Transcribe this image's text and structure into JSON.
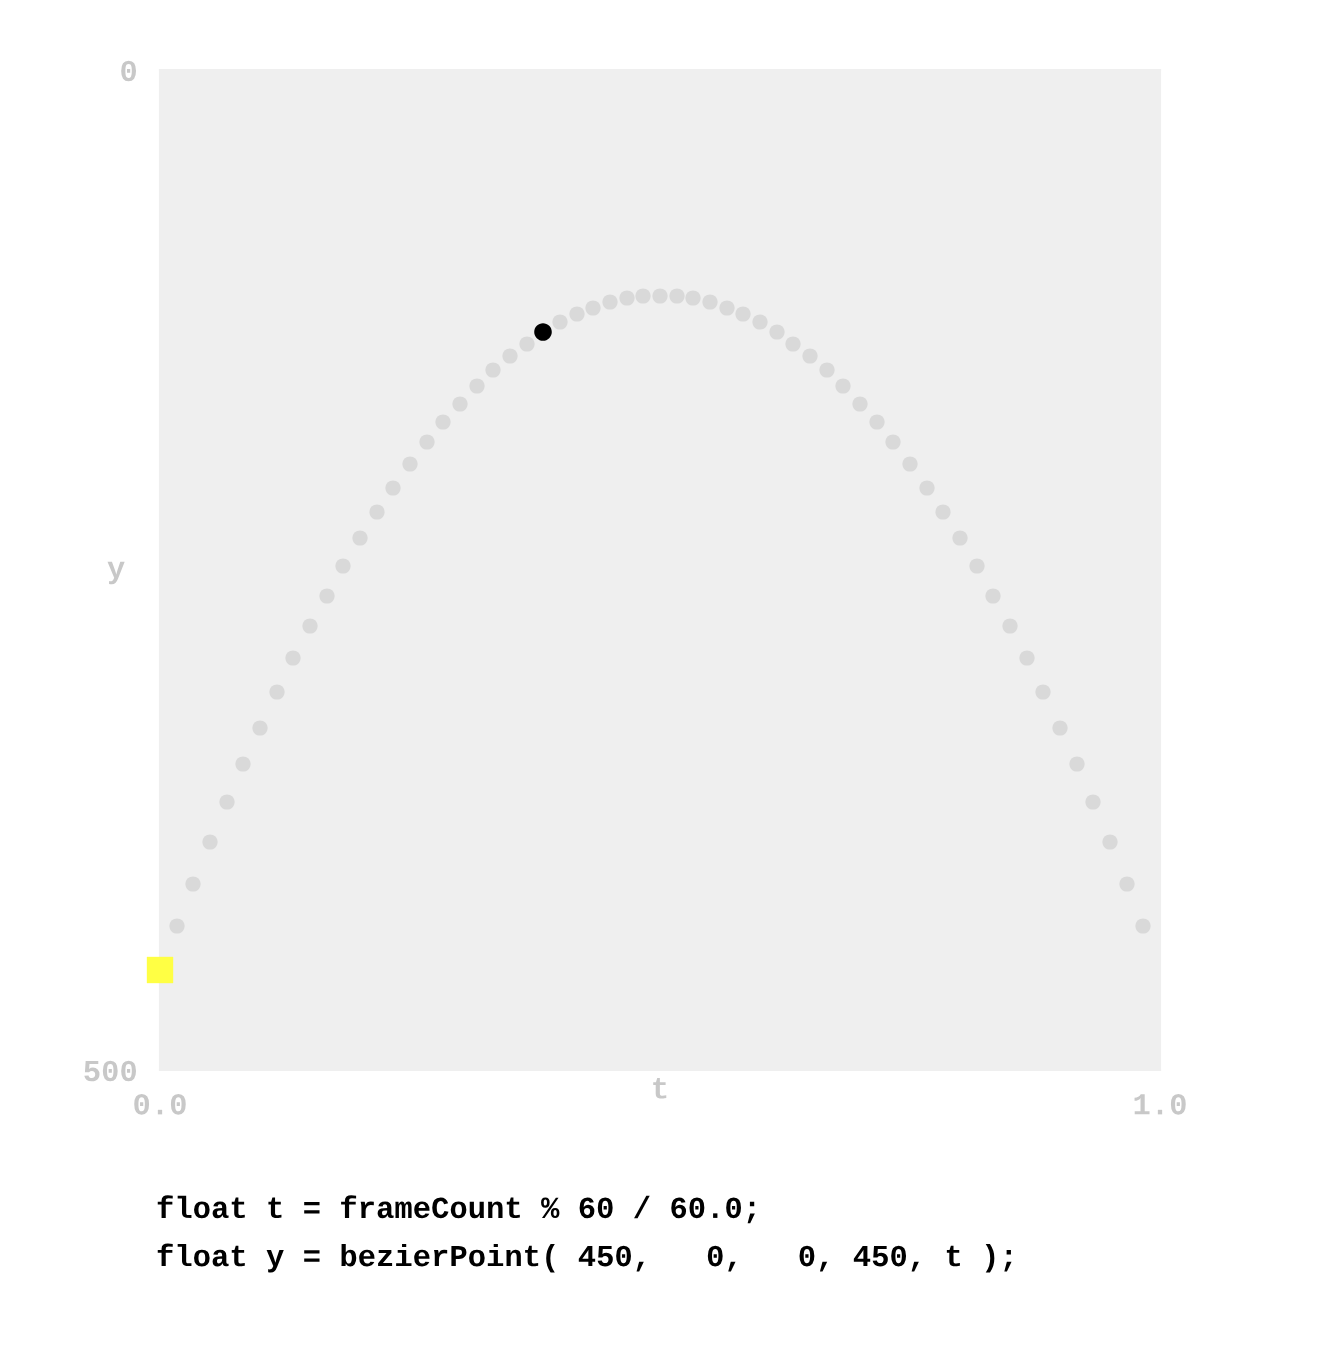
{
  "chart_data": {
    "type": "scatter",
    "xlabel": "t",
    "ylabel": "y",
    "xlim": [
      0,
      1
    ],
    "ylim": [
      500,
      0
    ],
    "xticks": [
      {
        "value": 0,
        "label": "0.0"
      },
      {
        "value": 1,
        "label": "1.0"
      }
    ],
    "yticks": [
      0,
      500
    ],
    "grid": false,
    "marker": "circle",
    "series": [
      {
        "color": "#d9d9d9",
        "x": [
          0.017,
          0.033,
          0.05,
          0.067,
          0.083,
          0.1,
          0.117,
          0.133,
          0.15,
          0.167,
          0.183,
          0.2,
          0.217,
          0.233,
          0.25,
          0.267,
          0.283,
          0.3,
          0.317,
          0.333,
          0.35,
          0.367,
          0.383,
          0.4,
          0.417,
          0.433,
          0.45,
          0.467,
          0.483,
          0.5,
          0.517,
          0.533,
          0.55,
          0.567,
          0.583,
          0.6,
          0.617,
          0.633,
          0.65,
          0.667,
          0.683,
          0.7,
          0.717,
          0.733,
          0.75,
          0.767,
          0.783,
          0.8,
          0.817,
          0.833,
          0.85,
          0.867,
          0.883,
          0.9,
          0.917,
          0.933,
          0.95,
          0.967,
          0.983
        ],
        "values": [
          428,
          407,
          386,
          366,
          347,
          329,
          311,
          294,
          278,
          263,
          248,
          234,
          221,
          209,
          197,
          186,
          176,
          167,
          158,
          150,
          143,
          137,
          null,
          126,
          122,
          119,
          116,
          114,
          113,
          113,
          113,
          114,
          116,
          119,
          122,
          126,
          131,
          137,
          143,
          150,
          158,
          167,
          176,
          186,
          197,
          209,
          221,
          234,
          248,
          263,
          278,
          294,
          311,
          329,
          347,
          366,
          386,
          407,
          428
        ]
      },
      {
        "color": "#ffff44",
        "marker": "square",
        "x": [
          0
        ],
        "values": [
          450
        ]
      },
      {
        "color": "#000000",
        "x": [
          0.383
        ],
        "values": [
          131
        ]
      }
    ],
    "annotations": [
      "float t = frameCount % 60 / 60.0;",
      "float y = bezierPoint( 450,   0,   0, 450, t );"
    ]
  }
}
